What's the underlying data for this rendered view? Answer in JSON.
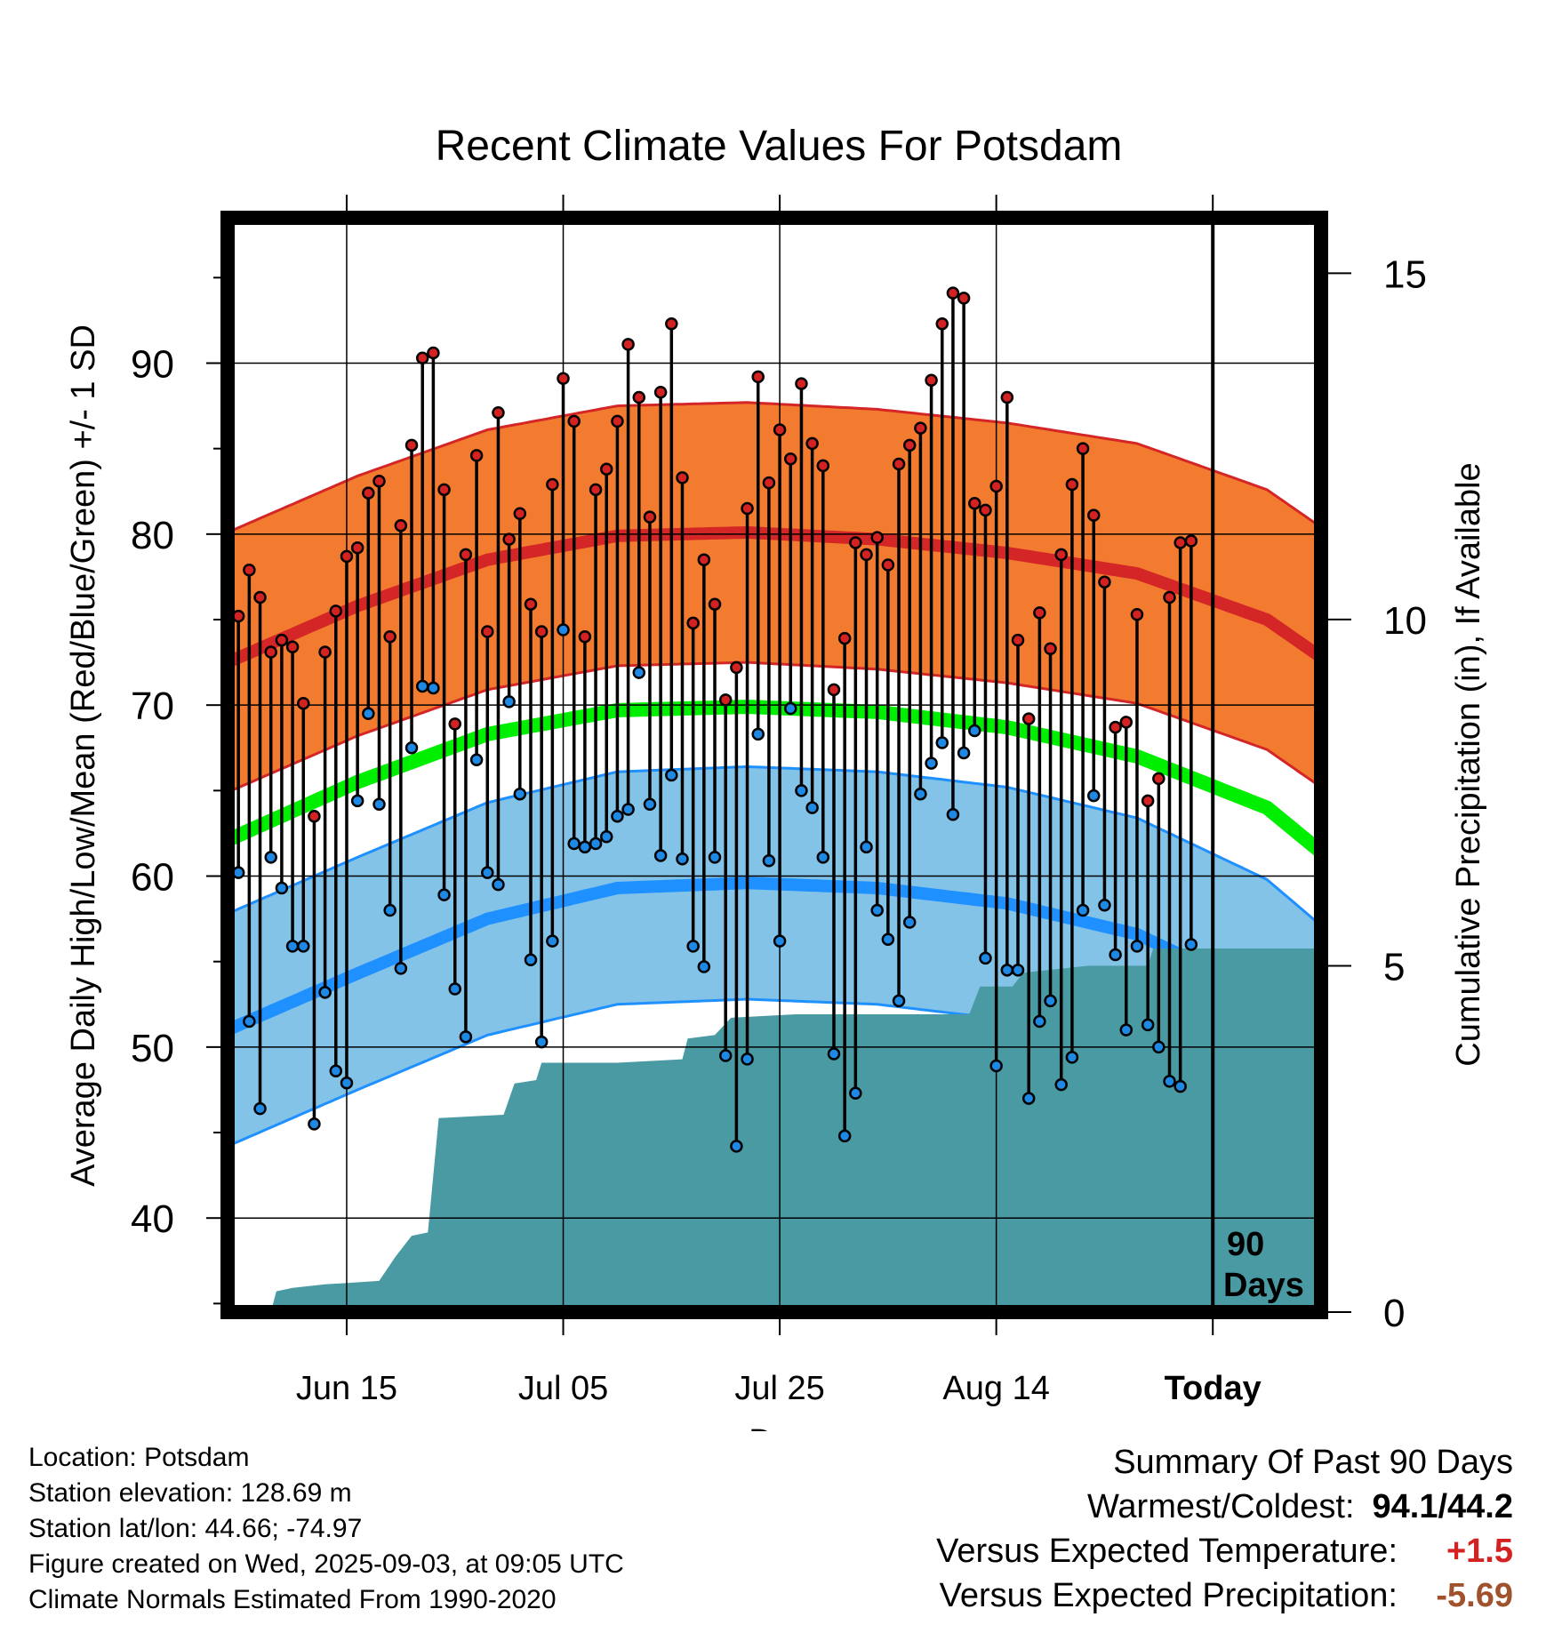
{
  "chart_data": {
    "type": "line",
    "title": "Recent Climate Values For Potsdam",
    "xlabel": "Day",
    "ylabel_left": "Average Daily High/Low/Mean (Red/Blue/Green) +/- 1 SD",
    "ylabel_right": "Cumulative Precipitation (in), If Available",
    "x_tick_labels": [
      "Jun 15",
      "Jul 05",
      "Jul 25",
      "Aug 14",
      "Today"
    ],
    "x_tick_days": [
      11,
      31,
      51,
      71,
      91
    ],
    "xlim": [
      0,
      101
    ],
    "ylim_left": [
      34.5,
      98.5
    ],
    "y_left_ticks": [
      40,
      50,
      60,
      70,
      80,
      90
    ],
    "ylim_right": [
      0,
      15.8
    ],
    "y_right_ticks": [
      0,
      5,
      10,
      15
    ],
    "annotation": [
      "90",
      "Days"
    ],
    "grid": true,
    "colors": {
      "high_band": "#f27b2f",
      "high_line": "#d42626",
      "low_band": "#84c3e8",
      "low_line": "#1e90ff",
      "mean_line": "#00ee00",
      "precip": "#4a9aa3",
      "obs_high_dot": "#d42222",
      "obs_low_dot": "#1e88e5"
    },
    "normal_high": {
      "days": [
        0,
        12,
        24,
        36,
        48,
        60,
        72,
        84,
        96,
        101
      ],
      "values": [
        72.5,
        75.8,
        78.5,
        79.9,
        80.1,
        79.7,
        78.9,
        77.7,
        75.0,
        72.8
      ]
    },
    "normal_high_sd": 7.6,
    "normal_low": {
      "days": [
        0,
        12,
        24,
        36,
        48,
        60,
        72,
        84,
        96,
        101
      ],
      "values": [
        51.0,
        54.3,
        57.5,
        59.3,
        59.6,
        59.3,
        58.4,
        56.6,
        53.0,
        50.3
      ]
    },
    "normal_low_sd": 6.8,
    "normal_mean": {
      "days": [
        0,
        12,
        24,
        36,
        48,
        60,
        72,
        84,
        96,
        101
      ],
      "values": [
        62.1,
        65.5,
        68.3,
        69.7,
        69.9,
        69.6,
        68.7,
        67.0,
        64.0,
        61.4
      ]
    },
    "observations": [
      {
        "day": 0,
        "high": 77.6,
        "low": 63.1
      },
      {
        "day": 1,
        "high": 75.2,
        "low": 60.2
      },
      {
        "day": 2,
        "high": 77.9,
        "low": 51.5
      },
      {
        "day": 3,
        "high": 76.3,
        "low": 46.4
      },
      {
        "day": 4,
        "high": 73.1,
        "low": 61.1
      },
      {
        "day": 5,
        "high": 73.8,
        "low": 59.3
      },
      {
        "day": 6,
        "high": 73.4,
        "low": 55.9
      },
      {
        "day": 7,
        "high": 70.1,
        "low": 55.9
      },
      {
        "day": 8,
        "high": 63.5,
        "low": 45.5
      },
      {
        "day": 9,
        "high": 73.1,
        "low": 53.2
      },
      {
        "day": 10,
        "high": 75.5,
        "low": 48.6
      },
      {
        "day": 11,
        "high": 78.7,
        "low": 47.9
      },
      {
        "day": 12,
        "high": 79.2,
        "low": 64.4
      },
      {
        "day": 13,
        "high": 82.4,
        "low": 69.5
      },
      {
        "day": 14,
        "high": 83.1,
        "low": 64.2
      },
      {
        "day": 15,
        "high": 74.0,
        "low": 58.0
      },
      {
        "day": 16,
        "high": 80.5,
        "low": 54.6
      },
      {
        "day": 17,
        "high": 85.2,
        "low": 67.5
      },
      {
        "day": 18,
        "high": 90.3,
        "low": 71.1
      },
      {
        "day": 19,
        "high": 90.6,
        "low": 71.0
      },
      {
        "day": 20,
        "high": 82.6,
        "low": 58.9
      },
      {
        "day": 21,
        "high": 68.9,
        "low": 53.4
      },
      {
        "day": 22,
        "high": 78.8,
        "low": 50.6
      },
      {
        "day": 23,
        "high": 84.6,
        "low": 66.8
      },
      {
        "day": 24,
        "high": 74.3,
        "low": 60.2
      },
      {
        "day": 25,
        "high": 87.1,
        "low": 59.5
      },
      {
        "day": 26,
        "high": 79.7,
        "low": 70.2
      },
      {
        "day": 27,
        "high": 81.2,
        "low": 64.8
      },
      {
        "day": 28,
        "high": 75.9,
        "low": 55.1
      },
      {
        "day": 29,
        "high": 74.3,
        "low": 50.3
      },
      {
        "day": 30,
        "high": 82.9,
        "low": 56.2
      },
      {
        "day": 31,
        "high": 89.1,
        "low": 74.4
      },
      {
        "day": 32,
        "high": 86.6,
        "low": 61.9
      },
      {
        "day": 33,
        "high": 74.0,
        "low": 61.7
      },
      {
        "day": 34,
        "high": 82.6,
        "low": 61.9
      },
      {
        "day": 35,
        "high": 83.8,
        "low": 62.3
      },
      {
        "day": 36,
        "high": 86.6,
        "low": 63.5
      },
      {
        "day": 37,
        "high": 91.1,
        "low": 63.9
      },
      {
        "day": 38,
        "high": 88.0,
        "low": 71.9
      },
      {
        "day": 39,
        "high": 81.0,
        "low": 64.2
      },
      {
        "day": 40,
        "high": 88.3,
        "low": 61.2
      },
      {
        "day": 41,
        "high": 92.3,
        "low": 65.9
      },
      {
        "day": 42,
        "high": 83.3,
        "low": 61.0
      },
      {
        "day": 43,
        "high": 74.8,
        "low": 55.9
      },
      {
        "day": 44,
        "high": 78.5,
        "low": 54.7
      },
      {
        "day": 45,
        "high": 75.9,
        "low": 61.1
      },
      {
        "day": 46,
        "high": 70.3,
        "low": 49.5
      },
      {
        "day": 47,
        "high": 72.2,
        "low": 44.2
      },
      {
        "day": 48,
        "high": 81.5,
        "low": 49.3
      },
      {
        "day": 49,
        "high": 89.2,
        "low": 68.3
      },
      {
        "day": 50,
        "high": 83.0,
        "low": 60.9
      },
      {
        "day": 51,
        "high": 86.1,
        "low": 56.2
      },
      {
        "day": 52,
        "high": 84.4,
        "low": 69.8
      },
      {
        "day": 53,
        "high": 88.8,
        "low": 65.0
      },
      {
        "day": 54,
        "high": 85.3,
        "low": 64.0
      },
      {
        "day": 55,
        "high": 84.0,
        "low": 61.1
      },
      {
        "day": 56,
        "high": 70.9,
        "low": 49.6
      },
      {
        "day": 57,
        "high": 73.9,
        "low": 44.8
      },
      {
        "day": 58,
        "high": 79.5,
        "low": 47.3
      },
      {
        "day": 59,
        "high": 78.8,
        "low": 61.7
      },
      {
        "day": 60,
        "high": 79.8,
        "low": 58.0
      },
      {
        "day": 61,
        "high": 78.2,
        "low": 56.3
      },
      {
        "day": 62,
        "high": 84.1,
        "low": 52.7
      },
      {
        "day": 63,
        "high": 85.2,
        "low": 57.3
      },
      {
        "day": 64,
        "high": 86.2,
        "low": 64.8
      },
      {
        "day": 65,
        "high": 89.0,
        "low": 66.6
      },
      {
        "day": 66,
        "high": 92.3,
        "low": 67.8
      },
      {
        "day": 67,
        "high": 94.1,
        "low": 63.6
      },
      {
        "day": 68,
        "high": 93.8,
        "low": 67.2
      },
      {
        "day": 69,
        "high": 81.8,
        "low": 68.5
      },
      {
        "day": 70,
        "high": 81.4,
        "low": 55.2
      },
      {
        "day": 71,
        "high": 82.8,
        "low": 48.9
      },
      {
        "day": 72,
        "high": 88.0,
        "low": 54.5
      },
      {
        "day": 73,
        "high": 73.8,
        "low": 54.5
      },
      {
        "day": 74,
        "high": 69.2,
        "low": 47.0
      },
      {
        "day": 75,
        "high": 75.4,
        "low": 51.5
      },
      {
        "day": 76,
        "high": 73.3,
        "low": 52.7
      },
      {
        "day": 77,
        "high": 78.8,
        "low": 47.8
      },
      {
        "day": 78,
        "high": 82.9,
        "low": 49.4
      },
      {
        "day": 79,
        "high": 85.0,
        "low": 58.0
      },
      {
        "day": 80,
        "high": 81.1,
        "low": 64.7
      },
      {
        "day": 81,
        "high": 77.2,
        "low": 58.3
      },
      {
        "day": 82,
        "high": 68.7,
        "low": 55.4
      },
      {
        "day": 83,
        "high": 69.0,
        "low": 51.0
      },
      {
        "day": 84,
        "high": 75.3,
        "low": 55.9
      },
      {
        "day": 85,
        "high": 64.4,
        "low": 51.3
      },
      {
        "day": 86,
        "high": 65.7,
        "low": 50.0
      },
      {
        "day": 87,
        "high": 76.3,
        "low": 48.0
      },
      {
        "day": 88,
        "high": 79.5,
        "low": 47.7
      },
      {
        "day": 89,
        "high": 79.6,
        "low": 56.0
      }
    ],
    "precipitation_cumulative": [
      {
        "day": 0,
        "value": 0.0
      },
      {
        "day": 4,
        "value": 0.0
      },
      {
        "day": 4.5,
        "value": 0.3
      },
      {
        "day": 6,
        "value": 0.35
      },
      {
        "day": 9,
        "value": 0.4
      },
      {
        "day": 14,
        "value": 0.45
      },
      {
        "day": 15.5,
        "value": 0.8
      },
      {
        "day": 17,
        "value": 1.1
      },
      {
        "day": 18.5,
        "value": 1.15
      },
      {
        "day": 19.5,
        "value": 2.8
      },
      {
        "day": 25.5,
        "value": 2.85
      },
      {
        "day": 26.5,
        "value": 3.3
      },
      {
        "day": 28.5,
        "value": 3.35
      },
      {
        "day": 29,
        "value": 3.6
      },
      {
        "day": 36,
        "value": 3.6
      },
      {
        "day": 42,
        "value": 3.65
      },
      {
        "day": 42.5,
        "value": 3.95
      },
      {
        "day": 45,
        "value": 4.0
      },
      {
        "day": 46.5,
        "value": 4.25
      },
      {
        "day": 52.5,
        "value": 4.3
      },
      {
        "day": 68.5,
        "value": 4.3
      },
      {
        "day": 69.5,
        "value": 4.7
      },
      {
        "day": 72.5,
        "value": 4.7
      },
      {
        "day": 73.5,
        "value": 4.9
      },
      {
        "day": 79.5,
        "value": 5.0
      },
      {
        "day": 85,
        "value": 5.0
      },
      {
        "day": 85.5,
        "value": 5.25
      },
      {
        "day": 89.5,
        "value": 5.25
      },
      {
        "day": 101,
        "value": 5.25
      }
    ]
  },
  "footer": {
    "location": "Location: Potsdam",
    "elevation": "Station elevation: 128.69 m",
    "latlon": "Station lat/lon: 44.66; -74.97",
    "created": "Figure created on Wed, 2025-09-03, at 09:05 UTC",
    "normals": "Climate Normals Estimated From 1990-2020"
  },
  "summary": {
    "title": "Summary Of Past 90 Days",
    "warmest_label": "Warmest/Coldest:",
    "warmest_value": "94.1/44.2",
    "temp_label": "Versus Expected Temperature:",
    "temp_value": "+1.5",
    "temp_color": "#d42222",
    "precip_label": "Versus Expected Precipitation:",
    "precip_value": "-5.69",
    "precip_color": "#a0522d"
  }
}
